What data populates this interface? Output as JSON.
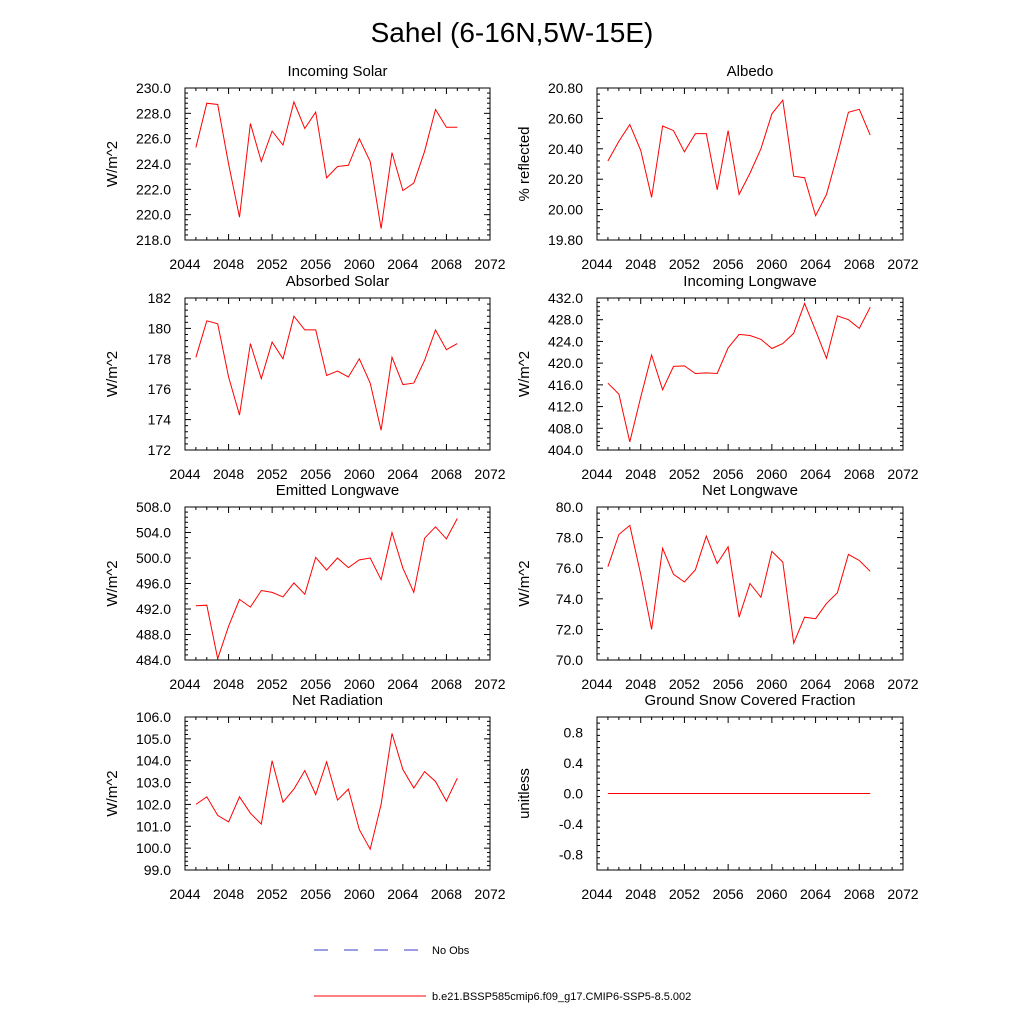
{
  "suptitle": "Sahel (6-16N,5W-15E)",
  "legend": {
    "obs_label": "No Obs",
    "obs_color": "#3b3bcc",
    "model_label": "b.e21.BSSP585cmip6.f09_g17.CMIP6-SSP5-8.5.002",
    "model_color": "#ff0000"
  },
  "chart_data": [
    {
      "type": "line",
      "title": "Incoming Solar",
      "ylabel": "W/m^2",
      "xlim": [
        2044,
        2072
      ],
      "xticks": [
        "2044",
        "2048",
        "2052",
        "2056",
        "2060",
        "2064",
        "2068",
        "2072"
      ],
      "ylim": [
        218.0,
        230.0
      ],
      "yticks": [
        "218.0",
        "220.0",
        "222.0",
        "224.0",
        "226.0",
        "228.0",
        "230.0"
      ],
      "x": [
        2045,
        2046,
        2047,
        2048,
        2049,
        2050,
        2051,
        2052,
        2053,
        2054,
        2055,
        2056,
        2057,
        2058,
        2059,
        2060,
        2061,
        2062,
        2063,
        2064,
        2065,
        2066,
        2067,
        2068,
        2069
      ],
      "series": [
        {
          "values": [
            225.3,
            228.8,
            228.7,
            224.0,
            219.8,
            227.2,
            224.2,
            226.6,
            225.5,
            228.9,
            226.8,
            228.1,
            222.9,
            223.8,
            223.9,
            226.0,
            224.2,
            218.9,
            224.9,
            221.9,
            222.5,
            225.0,
            228.3,
            226.9,
            226.9
          ],
          "color": "#ff0000"
        }
      ]
    },
    {
      "type": "line",
      "title": "Albedo",
      "ylabel": "% reflected",
      "xlim": [
        2044,
        2072
      ],
      "xticks": [
        "2044",
        "2048",
        "2052",
        "2056",
        "2060",
        "2064",
        "2068",
        "2072"
      ],
      "ylim": [
        19.8,
        20.8
      ],
      "yticks": [
        "19.80",
        "20.00",
        "20.20",
        "20.40",
        "20.60",
        "20.80"
      ],
      "x": [
        2045,
        2046,
        2047,
        2048,
        2049,
        2050,
        2051,
        2052,
        2053,
        2054,
        2055,
        2056,
        2057,
        2058,
        2059,
        2060,
        2061,
        2062,
        2063,
        2064,
        2065,
        2066,
        2067,
        2068,
        2069
      ],
      "series": [
        {
          "values": [
            20.32,
            20.45,
            20.56,
            20.39,
            20.08,
            20.55,
            20.52,
            20.38,
            20.5,
            20.5,
            20.13,
            20.52,
            20.1,
            20.24,
            20.4,
            20.63,
            20.72,
            20.22,
            20.21,
            19.96,
            20.1,
            20.36,
            20.64,
            20.66,
            20.49
          ],
          "color": "#ff0000"
        }
      ]
    },
    {
      "type": "line",
      "title": "Absorbed Solar",
      "ylabel": "W/m^2",
      "xlim": [
        2044,
        2072
      ],
      "xticks": [
        "2044",
        "2048",
        "2052",
        "2056",
        "2060",
        "2064",
        "2068",
        "2072"
      ],
      "ylim": [
        172,
        182
      ],
      "yticks": [
        "172",
        "174",
        "176",
        "178",
        "180",
        "182"
      ],
      "x": [
        2045,
        2046,
        2047,
        2048,
        2049,
        2050,
        2051,
        2052,
        2053,
        2054,
        2055,
        2056,
        2057,
        2058,
        2059,
        2060,
        2061,
        2062,
        2063,
        2064,
        2065,
        2066,
        2067,
        2068,
        2069
      ],
      "series": [
        {
          "values": [
            178.1,
            180.5,
            180.3,
            176.8,
            174.3,
            179.0,
            176.7,
            179.1,
            178.0,
            180.8,
            179.9,
            179.9,
            176.9,
            177.2,
            176.8,
            178.0,
            176.4,
            173.3,
            178.1,
            176.3,
            176.4,
            177.9,
            179.9,
            178.6,
            179.0
          ],
          "color": "#ff0000"
        }
      ]
    },
    {
      "type": "line",
      "title": "Incoming Longwave",
      "ylabel": "W/m^2",
      "xlim": [
        2044,
        2072
      ],
      "xticks": [
        "2044",
        "2048",
        "2052",
        "2056",
        "2060",
        "2064",
        "2068",
        "2072"
      ],
      "ylim": [
        404.0,
        432.0
      ],
      "yticks": [
        "404.0",
        "408.0",
        "412.0",
        "416.0",
        "420.0",
        "424.0",
        "428.0",
        "432.0"
      ],
      "x": [
        2045,
        2046,
        2047,
        2048,
        2049,
        2050,
        2051,
        2052,
        2053,
        2054,
        2055,
        2056,
        2057,
        2058,
        2059,
        2060,
        2061,
        2062,
        2063,
        2064,
        2065,
        2066,
        2067,
        2068,
        2069
      ],
      "series": [
        {
          "values": [
            416.3,
            414.3,
            405.5,
            413.7,
            421.5,
            415.1,
            419.4,
            419.5,
            418.1,
            418.2,
            418.1,
            422.8,
            425.3,
            425.1,
            424.4,
            422.7,
            423.6,
            425.5,
            431.0,
            426.0,
            420.9,
            428.7,
            428.0,
            426.4,
            430.3
          ],
          "color": "#ff0000"
        }
      ]
    },
    {
      "type": "line",
      "title": "Emitted Longwave",
      "ylabel": "W/m^2",
      "xlim": [
        2044,
        2072
      ],
      "xticks": [
        "2044",
        "2048",
        "2052",
        "2056",
        "2060",
        "2064",
        "2068",
        "2072"
      ],
      "ylim": [
        484.0,
        508.0
      ],
      "yticks": [
        "484.0",
        "488.0",
        "492.0",
        "496.0",
        "500.0",
        "504.0",
        "508.0"
      ],
      "x": [
        2045,
        2046,
        2047,
        2048,
        2049,
        2050,
        2051,
        2052,
        2053,
        2054,
        2055,
        2056,
        2057,
        2058,
        2059,
        2060,
        2061,
        2062,
        2063,
        2064,
        2065,
        2066,
        2067,
        2068,
        2069
      ],
      "series": [
        {
          "values": [
            492.5,
            492.6,
            484.2,
            489.3,
            493.5,
            492.3,
            494.9,
            494.6,
            493.9,
            496.1,
            494.3,
            500.1,
            498.1,
            500.0,
            498.5,
            499.7,
            500.0,
            496.6,
            504.0,
            498.4,
            494.6,
            503.1,
            504.9,
            503.0,
            506.2
          ],
          "color": "#ff0000"
        }
      ]
    },
    {
      "type": "line",
      "title": "Net Longwave",
      "ylabel": "W/m^2",
      "xlim": [
        2044,
        2072
      ],
      "xticks": [
        "2044",
        "2048",
        "2052",
        "2056",
        "2060",
        "2064",
        "2068",
        "2072"
      ],
      "ylim": [
        70.0,
        80.0
      ],
      "yticks": [
        "70.0",
        "72.0",
        "74.0",
        "76.0",
        "78.0",
        "80.0"
      ],
      "x": [
        2045,
        2046,
        2047,
        2048,
        2049,
        2050,
        2051,
        2052,
        2053,
        2054,
        2055,
        2056,
        2057,
        2058,
        2059,
        2060,
        2061,
        2062,
        2063,
        2064,
        2065,
        2066,
        2067,
        2068,
        2069
      ],
      "series": [
        {
          "values": [
            76.1,
            78.2,
            78.8,
            75.6,
            72.0,
            77.3,
            75.6,
            75.1,
            75.9,
            78.1,
            76.3,
            77.4,
            72.8,
            75.0,
            74.1,
            77.1,
            76.4,
            71.1,
            72.8,
            72.7,
            73.7,
            74.4,
            76.9,
            76.5,
            75.8
          ],
          "color": "#ff0000"
        }
      ]
    },
    {
      "type": "line",
      "title": "Net Radiation",
      "ylabel": "W/m^2",
      "xlim": [
        2044,
        2072
      ],
      "xticks": [
        "2044",
        "2048",
        "2052",
        "2056",
        "2060",
        "2064",
        "2068",
        "2072"
      ],
      "ylim": [
        99.0,
        106.0
      ],
      "yticks": [
        "99.0",
        "100.0",
        "101.0",
        "102.0",
        "103.0",
        "104.0",
        "105.0",
        "106.0"
      ],
      "x": [
        2045,
        2046,
        2047,
        2048,
        2049,
        2050,
        2051,
        2052,
        2053,
        2054,
        2055,
        2056,
        2057,
        2058,
        2059,
        2060,
        2061,
        2062,
        2063,
        2064,
        2065,
        2066,
        2067,
        2068,
        2069
      ],
      "series": [
        {
          "values": [
            102.0,
            102.35,
            101.5,
            101.2,
            102.35,
            101.6,
            101.1,
            104.0,
            102.1,
            102.7,
            103.55,
            102.45,
            103.95,
            102.2,
            102.7,
            100.85,
            99.95,
            102.0,
            105.25,
            103.6,
            102.75,
            103.5,
            103.05,
            102.15,
            103.2
          ],
          "color": "#ff0000"
        }
      ]
    },
    {
      "type": "line",
      "title": "Ground Snow Covered Fraction",
      "ylabel": "unitless",
      "xlim": [
        2044,
        2072
      ],
      "xticks": [
        "2044",
        "2048",
        "2052",
        "2056",
        "2060",
        "2064",
        "2068",
        "2072"
      ],
      "ylim": [
        -1.0,
        1.0
      ],
      "yticks": [
        "-0.8",
        "-0.4",
        "0.0",
        "0.4",
        "0.8"
      ],
      "x": [
        2045,
        2046,
        2047,
        2048,
        2049,
        2050,
        2051,
        2052,
        2053,
        2054,
        2055,
        2056,
        2057,
        2058,
        2059,
        2060,
        2061,
        2062,
        2063,
        2064,
        2065,
        2066,
        2067,
        2068,
        2069
      ],
      "series": [
        {
          "values": [
            0,
            0,
            0,
            0,
            0,
            0,
            0,
            0,
            0,
            0,
            0,
            0,
            0,
            0,
            0,
            0,
            0,
            0,
            0,
            0,
            0,
            0,
            0,
            0,
            0
          ],
          "color": "#ff0000"
        }
      ]
    }
  ]
}
